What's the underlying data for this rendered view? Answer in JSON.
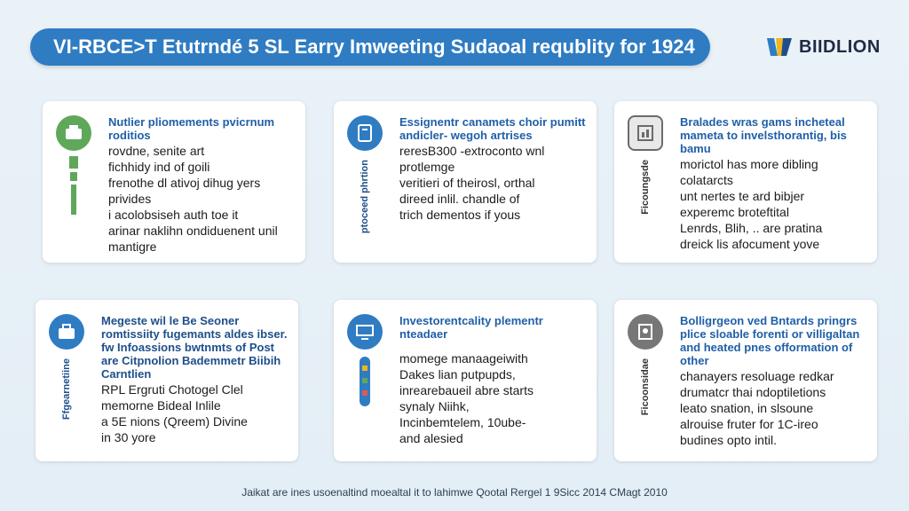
{
  "header": {
    "title": "VI-RBCE>T Etutrndé 5 SL Earry Imweeting Sudaoal requblity for 1924",
    "logo_text": "BIIDLION",
    "brand_color": "#2f7cc3"
  },
  "cards": [
    {
      "icon": "badge-icon",
      "icon_color": "#5fa85a",
      "vertical_label": "",
      "heading": "Nutlier pliomements pvicrnum roditios",
      "lines": [
        "rovdne, senite art",
        "fichhidy ind of goili",
        "frenothe dl ativoj dihug yers",
        "privides",
        "i acolobsiseh auth toe it",
        "arinar naklihn ondiduenent unil",
        "mantigre"
      ]
    },
    {
      "icon": "tablet-icon",
      "icon_color": "#2f7cc3",
      "vertical_label": "ptoceed phrtion",
      "heading": "Essignentr canamets choir pumitt andicler- wegoh artrises",
      "lines": [
        "reresB300 -extroconto wnl",
        "protlemge",
        "veritieri of theirosl, orthal",
        "direed inlil. chandle of",
        "trich dementos if yous"
      ]
    },
    {
      "icon": "chart-icon",
      "icon_color": "#6b6b6b",
      "vertical_label": "Ficoungsde",
      "heading": "Bralades wras gams incheteal mameta to invelsthorantig, bis bamu",
      "lines": [
        "morictol has more dibling",
        "colatarcts",
        "unt nertes te ard bibjer",
        "experemc broteftital",
        "Lenrds, Blih, .. are pratina",
        "dreick lis afocument yove"
      ]
    },
    {
      "icon": "briefcase-icon",
      "icon_color": "#2f7cc3",
      "vertical_label": "Ffgearnetiine",
      "heading": "Megeste wil le Be Seoner romtissiity fugemants aldes ibser. fw Infoassions bwtnmts of Post are Citpnolion Bademmetr Biibih Carntlien",
      "lines": [
        "RPL Ergruti Chotogel Clel",
        "memorne Bideal Inlile",
        "a 5E nions (Qreem) Divine",
        "in 30 yore"
      ]
    },
    {
      "icon": "monitor-icon",
      "icon_color": "#2f7cc3",
      "vertical_label": "",
      "heading": "Investorentcality plementr nteadaer",
      "lines": [
        "momege manaageiwith",
        "Dakes lian putpupds,",
        "inrearebaueil abre starts",
        "synaly Niihk,",
        "Incinbemtelem, 10ube-",
        "and alesied"
      ]
    },
    {
      "icon": "tree-icon",
      "icon_color": "#6b6b6b",
      "vertical_label": "Ficoonsidae",
      "heading": "Bolligrgeon ved Bntards pringrs plice sloable forenti or villigaltan and heated pnes offormation of other",
      "lines": [
        "chanayers resoluage redkar",
        "drumatcr thai ndoptiletions",
        "leato snation, in slsoune",
        "alrouise fruter for 1C-ireo",
        "budines opto intil."
      ]
    }
  ],
  "footer": {
    "text": "Jaikat are ines usoenaltind moealtal it to lahimwe Qootal Rergel 1 9Sicc 2014 CMagt 2010"
  }
}
